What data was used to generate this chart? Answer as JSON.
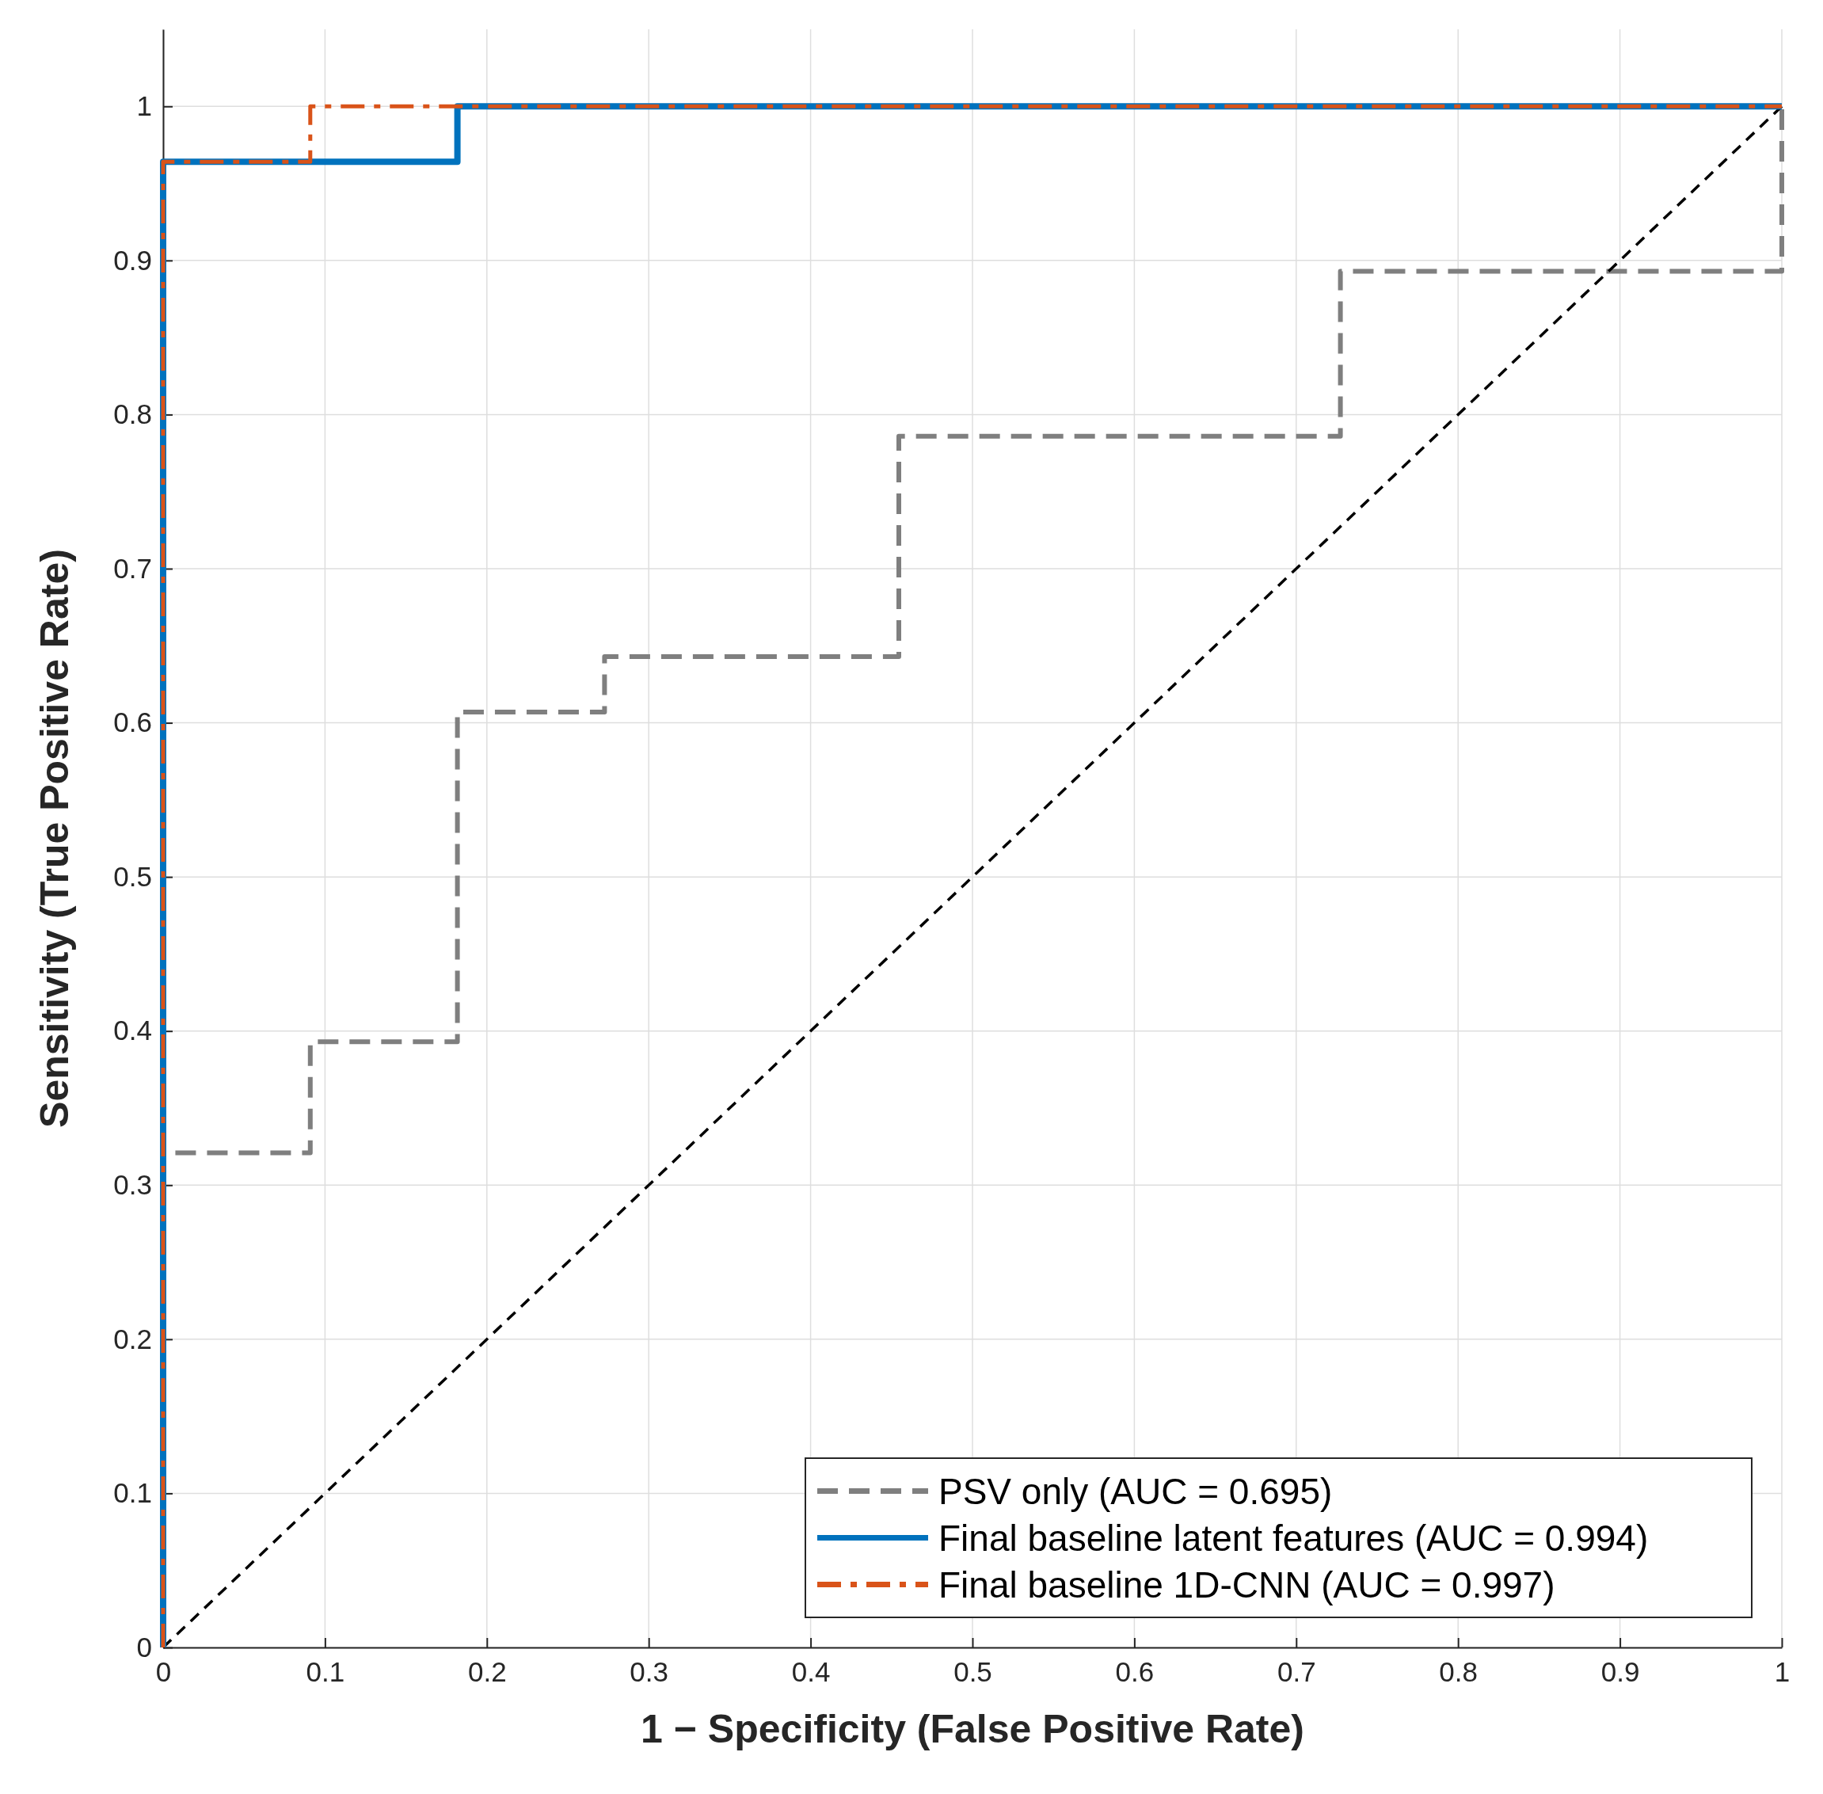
{
  "chart_data": {
    "type": "step",
    "xlabel": "1 − Specificity (False Positive Rate)",
    "ylabel": "Sensitivity (True Positive Rate)",
    "xlim": [
      0,
      1
    ],
    "ylim": [
      0,
      1.05
    ],
    "xticks": [
      0,
      0.1,
      0.2,
      0.3,
      0.4,
      0.5,
      0.6,
      0.7,
      0.8,
      0.9,
      1
    ],
    "yticks": [
      0,
      0.1,
      0.2,
      0.3,
      0.4,
      0.5,
      0.6,
      0.7,
      0.8,
      0.9,
      1
    ],
    "grid": true,
    "legend": "bottom right",
    "series": [
      {
        "name": "PSV only (AUC = 0.695)",
        "color": "#7f7f7f",
        "line_style": "dashed",
        "x": [
          0,
          0,
          0.0909,
          0.1818,
          0.2727,
          0.4545,
          0.7273,
          1,
          1
        ],
        "values": [
          0,
          0.321,
          0.393,
          0.607,
          0.643,
          0.786,
          0.893,
          0.893,
          1
        ]
      },
      {
        "type": "line",
        "color": "#000000",
        "line_style": "dashed",
        "x": [
          0,
          1
        ],
        "values": [
          0,
          1
        ]
      },
      {
        "name": "Final baseline latent features (AUC = 0.994)",
        "color": "#0072bd",
        "line_style": "solid",
        "x": [
          0,
          0,
          0.1818,
          1
        ],
        "values": [
          0,
          0.964,
          1,
          1
        ]
      },
      {
        "name": "Final baseline 1D-CNN (AUC = 0.997)",
        "color": "#d95319",
        "line_style": "dashdot",
        "x": [
          0,
          0,
          0.0909,
          1
        ],
        "values": [
          0,
          0.964,
          1,
          1
        ]
      }
    ]
  }
}
